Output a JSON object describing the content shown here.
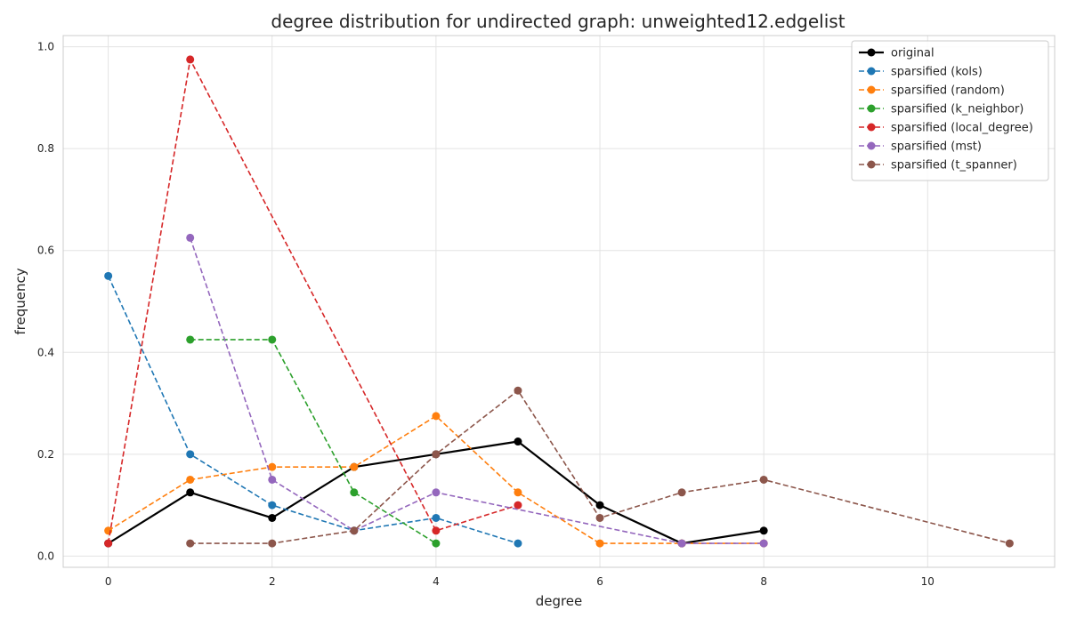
{
  "chart_data": {
    "type": "line",
    "title": "degree distribution for undirected graph: unweighted12.edgelist",
    "xlabel": "degree",
    "ylabel": "frequency",
    "xlim": [
      -0.55,
      11.55
    ],
    "ylim": [
      -0.022,
      1.022
    ],
    "x_ticks": [
      0,
      2,
      4,
      6,
      8,
      10
    ],
    "y_ticks": [
      0.0,
      0.2,
      0.4,
      0.6,
      0.8,
      1.0
    ],
    "x_tick_labels": [
      "0",
      "2",
      "4",
      "6",
      "8",
      "10"
    ],
    "y_tick_labels": [
      "0.0",
      "0.2",
      "0.4",
      "0.6",
      "0.8",
      "1.0"
    ],
    "grid": true,
    "legend_position": "top-right",
    "series": [
      {
        "name": "original",
        "color": "#000000",
        "style": "solid",
        "x": [
          0,
          1,
          2,
          3,
          4,
          5,
          6,
          7,
          8
        ],
        "y": [
          0.025,
          0.125,
          0.075,
          0.175,
          0.2,
          0.225,
          0.1,
          0.025,
          0.05
        ]
      },
      {
        "name": "sparsified (kols)",
        "color": "#1f77b4",
        "style": "dashed",
        "x": [
          0,
          1,
          2,
          3,
          4,
          5
        ],
        "y": [
          0.55,
          0.2,
          0.1,
          0.05,
          0.075,
          0.025
        ]
      },
      {
        "name": "sparsified (random)",
        "color": "#ff7f0e",
        "style": "dashed",
        "x": [
          0,
          1,
          2,
          3,
          4,
          5,
          6,
          7,
          8
        ],
        "y": [
          0.05,
          0.15,
          0.175,
          0.175,
          0.275,
          0.125,
          0.025,
          0.025,
          0.025
        ]
      },
      {
        "name": "sparsified (k_neighbor)",
        "color": "#2ca02c",
        "style": "dashed",
        "x": [
          1,
          2,
          3,
          4
        ],
        "y": [
          0.425,
          0.425,
          0.125,
          0.025
        ]
      },
      {
        "name": "sparsified (local_degree)",
        "color": "#d62728",
        "style": "dashed",
        "x": [
          0,
          1,
          4,
          5
        ],
        "y": [
          0.025,
          0.975,
          0.05,
          0.1
        ]
      },
      {
        "name": "sparsified (mst)",
        "color": "#9467bd",
        "style": "dashed",
        "x": [
          1,
          2,
          3,
          4,
          7,
          8
        ],
        "y": [
          0.625,
          0.15,
          0.05,
          0.125,
          0.025,
          0.025
        ]
      },
      {
        "name": "sparsified (t_spanner)",
        "color": "#8c564b",
        "style": "dashed",
        "x": [
          1,
          2,
          3,
          4,
          5,
          6,
          7,
          8,
          11
        ],
        "y": [
          0.025,
          0.025,
          0.05,
          0.2,
          0.325,
          0.075,
          0.125,
          0.15,
          0.025
        ]
      }
    ]
  }
}
